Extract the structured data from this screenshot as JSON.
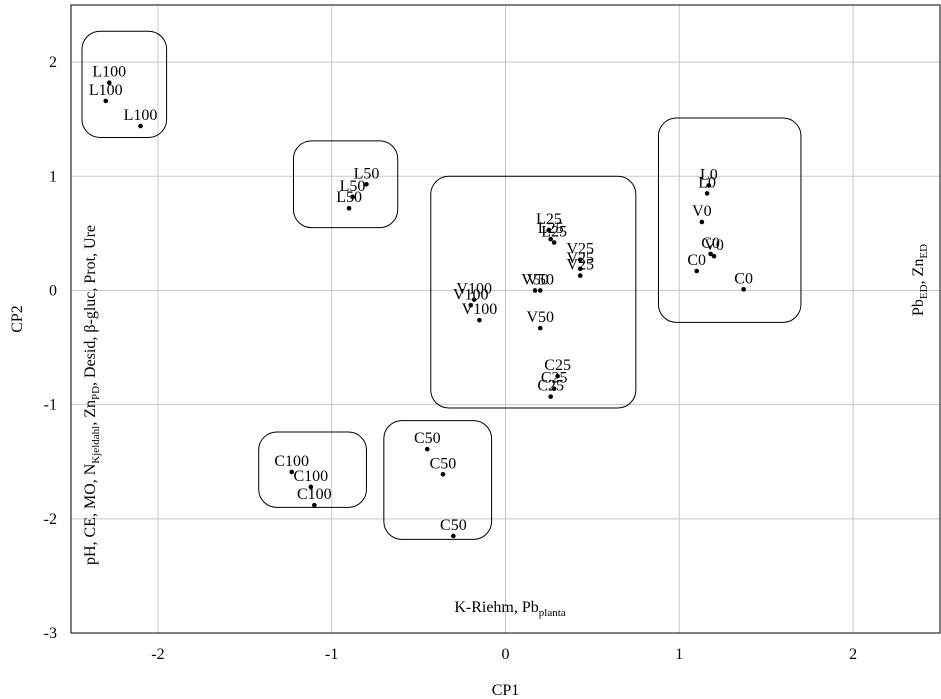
{
  "chart_data": {
    "type": "scatter",
    "xlabel": "CP1",
    "ylabel": "CP2",
    "xlim": [
      -2.5,
      2.5
    ],
    "ylim": [
      -3,
      2.5
    ],
    "xticks": [
      -2,
      -1,
      0,
      1,
      2
    ],
    "yticks": [
      -3,
      -2,
      -1,
      0,
      1,
      2
    ],
    "grid": true,
    "points": [
      {
        "label": "L100",
        "x": -2.28,
        "y": 1.82
      },
      {
        "label": "L100",
        "x": -2.3,
        "y": 1.66
      },
      {
        "label": "L100",
        "x": -2.1,
        "y": 1.44
      },
      {
        "label": "L50",
        "x": -0.8,
        "y": 0.93
      },
      {
        "label": "L50",
        "x": -0.88,
        "y": 0.82
      },
      {
        "label": "L50",
        "x": -0.9,
        "y": 0.72
      },
      {
        "label": "L25",
        "x": 0.25,
        "y": 0.53
      },
      {
        "label": "L25",
        "x": 0.26,
        "y": 0.45
      },
      {
        "label": "L25",
        "x": 0.28,
        "y": 0.42
      },
      {
        "label": "V25",
        "x": 0.43,
        "y": 0.27
      },
      {
        "label": "V25",
        "x": 0.43,
        "y": 0.19
      },
      {
        "label": "V25",
        "x": 0.43,
        "y": 0.13
      },
      {
        "label": "V50",
        "x": 0.17,
        "y": 0.0
      },
      {
        "label": "V50",
        "x": 0.2,
        "y": 0.0
      },
      {
        "label": "V50",
        "x": 0.2,
        "y": -0.33
      },
      {
        "label": "V100",
        "x": -0.18,
        "y": -0.08
      },
      {
        "label": "V100",
        "x": -0.2,
        "y": -0.13
      },
      {
        "label": "V100",
        "x": -0.15,
        "y": -0.26
      },
      {
        "label": "C25",
        "x": 0.3,
        "y": -0.75
      },
      {
        "label": "C25",
        "x": 0.28,
        "y": -0.86
      },
      {
        "label": "C25",
        "x": 0.26,
        "y": -0.93
      },
      {
        "label": "L0",
        "x": 1.17,
        "y": 0.92
      },
      {
        "label": "L0",
        "x": 1.16,
        "y": 0.85
      },
      {
        "label": "V0",
        "x": 1.13,
        "y": 0.6
      },
      {
        "label": "V0",
        "x": 1.2,
        "y": 0.3
      },
      {
        "label": "C0",
        "x": 1.18,
        "y": 0.32
      },
      {
        "label": "C0",
        "x": 1.1,
        "y": 0.17
      },
      {
        "label": "C0",
        "x": 1.37,
        "y": 0.01
      },
      {
        "label": "C100",
        "x": -1.23,
        "y": -1.59
      },
      {
        "label": "C100",
        "x": -1.1,
        "y": -1.88
      },
      {
        "label": "C100",
        "x": -1.12,
        "y": -1.72
      },
      {
        "label": "C50",
        "x": -0.45,
        "y": -1.39
      },
      {
        "label": "C50",
        "x": -0.36,
        "y": -1.61
      },
      {
        "label": "C50",
        "x": -0.3,
        "y": -2.15
      }
    ],
    "annotations": {
      "left": {
        "main": "pH, CE, MO, N",
        "sub1": "Kjeldahl",
        "mid": ", Zn",
        "sub2": "PD",
        "rest": ", Desid, β-gluc, Prot, Ure"
      },
      "bottom": {
        "main": "K-Riehm, Pb",
        "sub": "planta"
      },
      "right": {
        "main1": "Pb",
        "sub1": "ED",
        "mid": ", Zn",
        "sub2": "ED"
      }
    },
    "groups": [
      {
        "x0": -2.5,
        "x1": -1.95,
        "y0": 1.34,
        "y1": 2.27
      },
      {
        "x0": -1.22,
        "x1": -0.62,
        "y0": 0.55,
        "y1": 1.31
      },
      {
        "x0": -0.43,
        "x1": 0.75,
        "y0": -1.03,
        "y1": 1.0
      },
      {
        "x0": 0.88,
        "x1": 1.7,
        "y0": -0.28,
        "y1": 1.51
      },
      {
        "x0": -1.42,
        "x1": -0.8,
        "y0": -1.9,
        "y1": -1.24
      },
      {
        "x0": -0.7,
        "x1": -0.08,
        "y0": -2.18,
        "y1": -1.14
      }
    ]
  }
}
